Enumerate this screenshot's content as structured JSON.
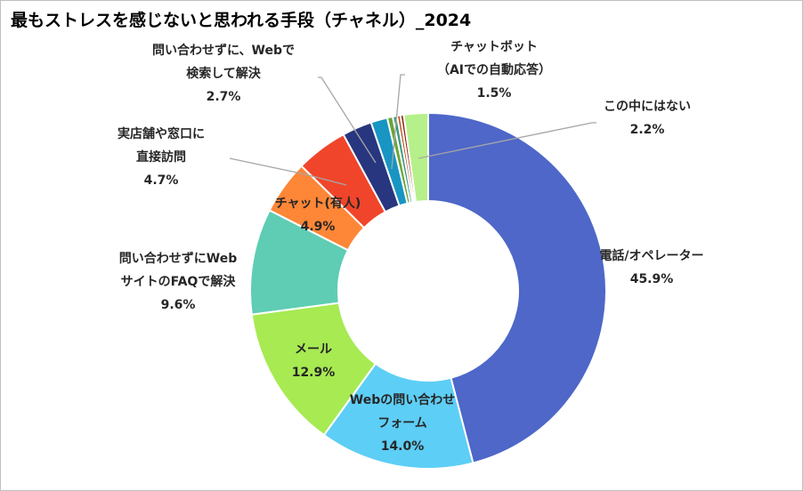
{
  "chart_data": {
    "type": "pie",
    "donut": true,
    "title": "最もストレスを感じないと思われる手段（チャネル）_2024",
    "unit": "%",
    "slices": [
      {
        "label_lines": [
          "電話/オペレーター"
        ],
        "value": 45.9,
        "value_label": "45.9%",
        "color": "#4e67c8"
      },
      {
        "label_lines": [
          "Webの問い合わせ",
          "フォーム"
        ],
        "value": 14.0,
        "value_label": "14.0%",
        "color": "#5dcef5"
      },
      {
        "label_lines": [
          "メール"
        ],
        "value": 12.9,
        "value_label": "12.9%",
        "color": "#a7ea52"
      },
      {
        "label_lines": [
          "問い合わせずにWeb",
          "サイトのFAQで解決"
        ],
        "value": 9.6,
        "value_label": "9.6%",
        "color": "#5ecdb3"
      },
      {
        "label_lines": [
          "チャット(有人)"
        ],
        "value": 4.9,
        "value_label": "4.9%",
        "color": "#fe8637"
      },
      {
        "label_lines": [
          "実店舗や窓口に",
          "直接訪問"
        ],
        "value": 4.7,
        "value_label": "4.7%",
        "color": "#f0452a"
      },
      {
        "label_lines": [
          "問い合わせずに、Webで",
          "検索して解決"
        ],
        "value": 2.7,
        "value_label": "2.7%",
        "color": "#27367f"
      },
      {
        "label_lines": [
          "チャットボット",
          "（AIでの自動応答）"
        ],
        "value": 1.5,
        "value_label": "1.5%",
        "color": "#1895c2"
      },
      {
        "label_lines": [],
        "value": 0.5,
        "value_label": "",
        "color": "#6aa434"
      },
      {
        "label_lines": [],
        "value": 0.4,
        "value_label": "",
        "color": "#3c9a80"
      },
      {
        "label_lines": [],
        "value": 0.3,
        "value_label": "",
        "color": "#c0501f"
      },
      {
        "label_lines": [],
        "value": 0.3,
        "value_label": "",
        "color": "#8e2a1a"
      },
      {
        "label_lines": [
          "この中にはない"
        ],
        "value": 2.2,
        "value_label": "2.2%",
        "color": "#b6f08a"
      }
    ]
  }
}
